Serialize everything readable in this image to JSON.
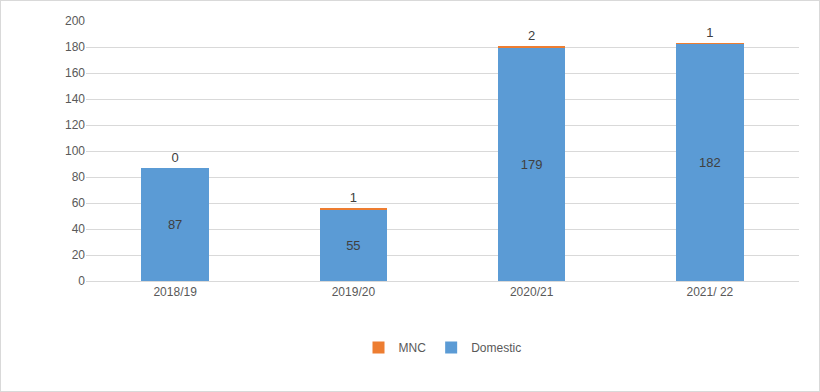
{
  "chart_data": {
    "type": "bar",
    "categories": [
      "2018/19",
      "2019/20",
      "2020/21",
      "2021/ 22"
    ],
    "series": [
      {
        "name": "Domestic",
        "color": "#5b9bd5",
        "values": [
          87,
          55,
          179,
          182
        ]
      },
      {
        "name": "MNC",
        "color": "#ed7d31",
        "values": [
          0,
          1,
          2,
          1
        ]
      }
    ],
    "stacked": true,
    "data_labels": true,
    "ylim": [
      0,
      200
    ],
    "yticks": [
      0,
      20,
      40,
      60,
      80,
      100,
      120,
      140,
      160,
      180,
      200
    ],
    "grid": true,
    "legend": "bottom"
  }
}
